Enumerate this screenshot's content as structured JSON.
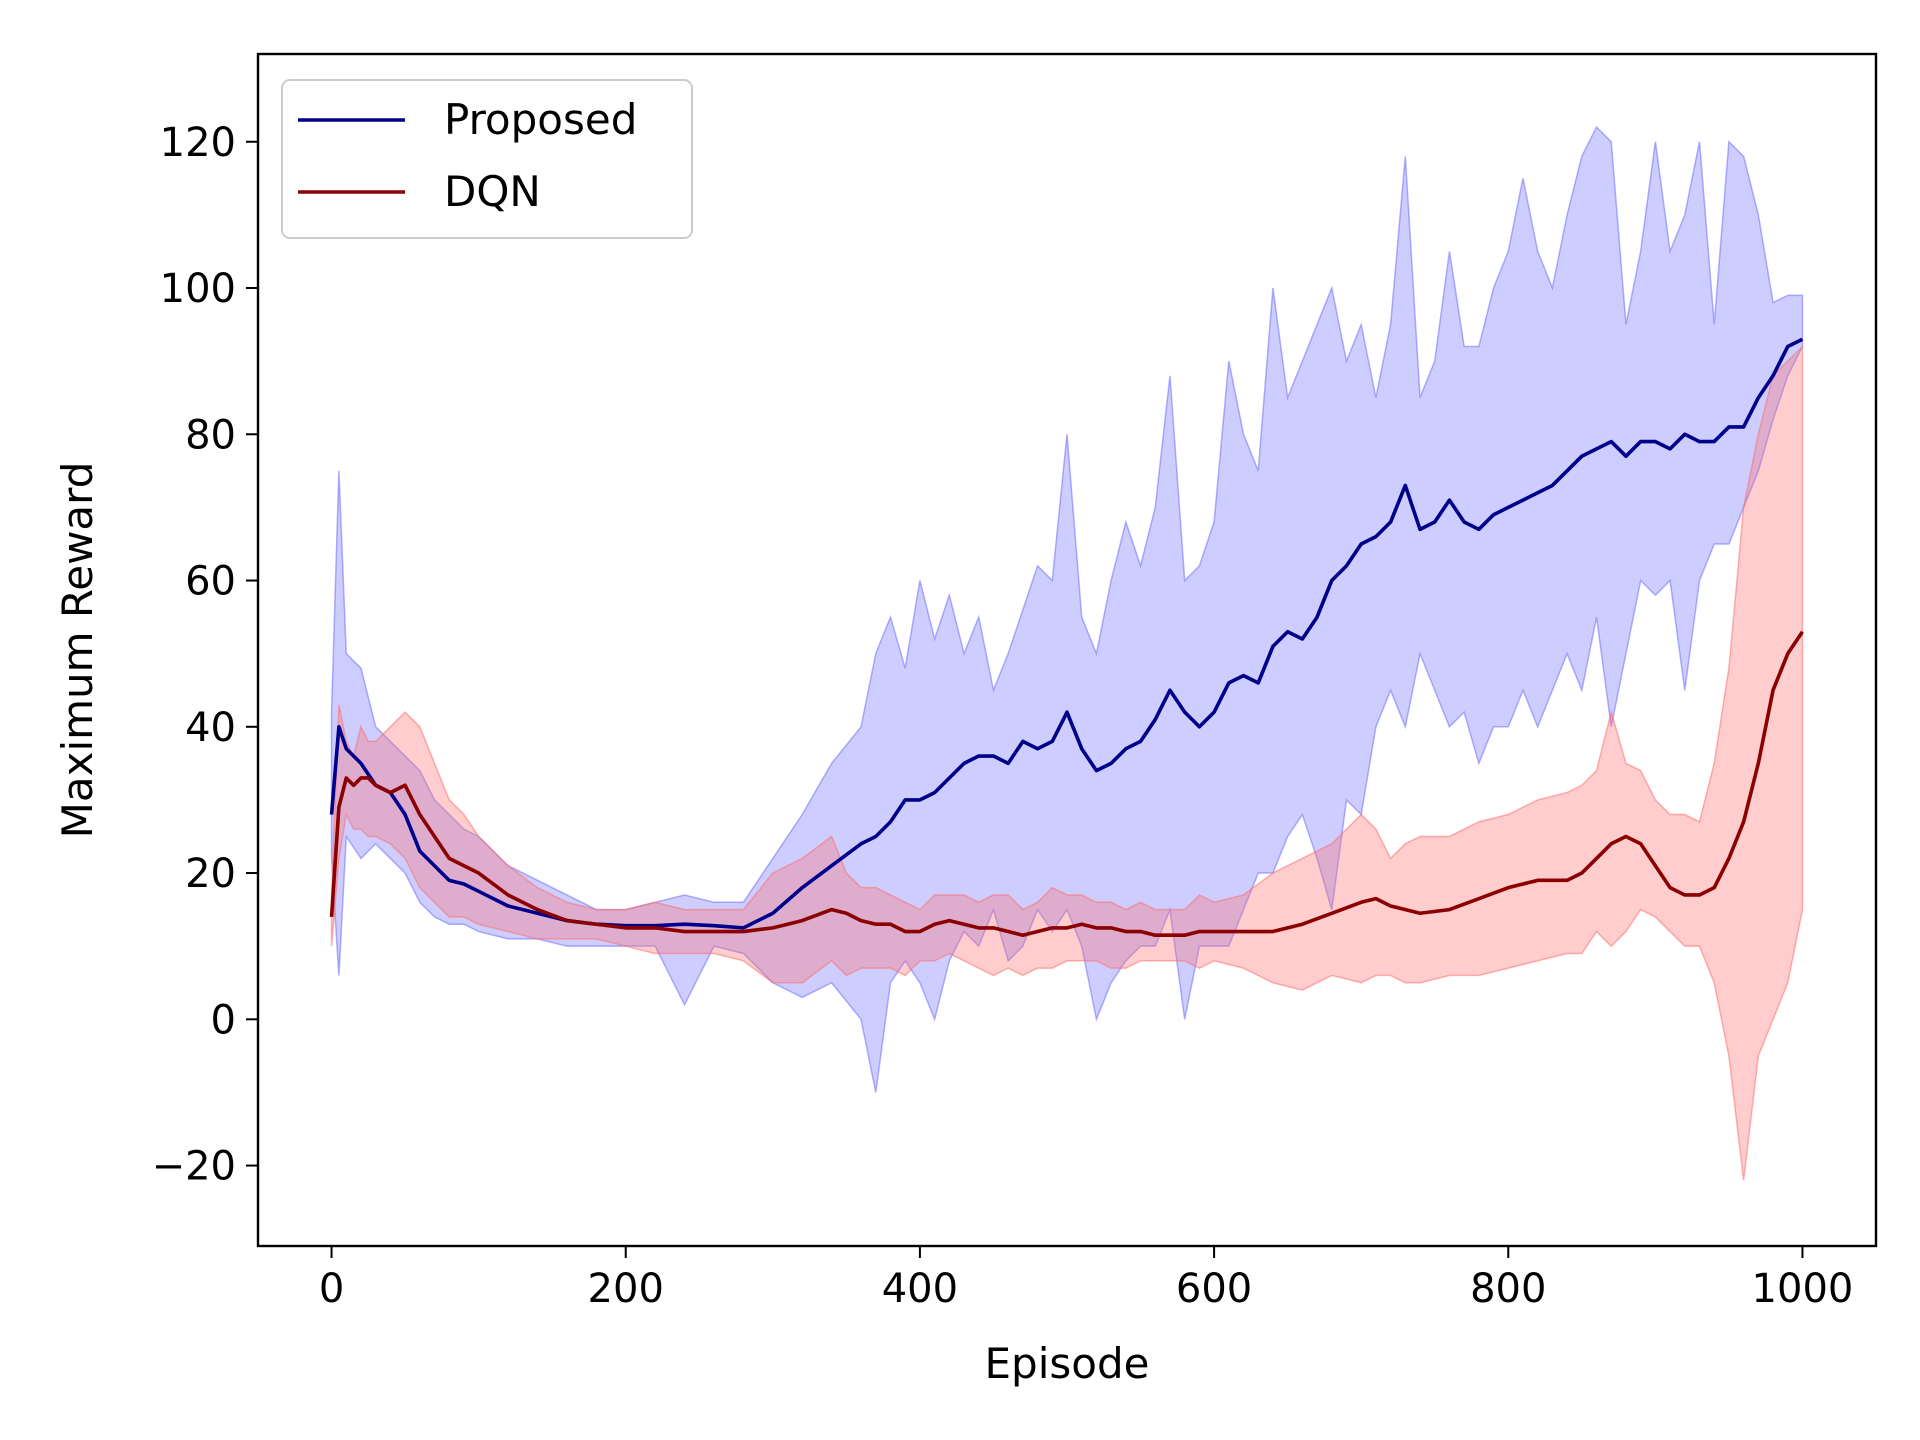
{
  "chart_data": {
    "type": "line",
    "title": "",
    "xlabel": "Episode",
    "ylabel": "Maximum Reward",
    "xlim": [
      -50,
      1050
    ],
    "ylim": [
      -31,
      132
    ],
    "xticks": [
      0,
      200,
      400,
      600,
      800,
      1000
    ],
    "yticks": [
      -20,
      0,
      20,
      40,
      60,
      80,
      100,
      120
    ],
    "grid": false,
    "legend": "top-left",
    "series": [
      {
        "name": "Proposed",
        "color": "#00008b",
        "band_color": "#6f6fff",
        "x": [
          0,
          5,
          10,
          20,
          30,
          40,
          50,
          60,
          70,
          80,
          90,
          100,
          120,
          140,
          160,
          180,
          200,
          220,
          240,
          260,
          280,
          300,
          320,
          340,
          360,
          370,
          380,
          390,
          400,
          410,
          420,
          430,
          440,
          450,
          460,
          470,
          480,
          490,
          500,
          510,
          520,
          530,
          540,
          550,
          560,
          570,
          580,
          590,
          600,
          610,
          620,
          630,
          640,
          650,
          660,
          670,
          680,
          690,
          700,
          710,
          720,
          730,
          740,
          750,
          760,
          770,
          780,
          790,
          800,
          810,
          820,
          830,
          840,
          850,
          860,
          870,
          880,
          890,
          900,
          910,
          920,
          930,
          940,
          950,
          960,
          970,
          980,
          990,
          1000
        ],
        "mean": [
          28,
          40,
          37,
          35,
          32,
          31,
          28,
          23,
          21,
          19,
          18.5,
          17.5,
          15.5,
          14.5,
          13.5,
          13,
          12.8,
          12.8,
          13,
          12.8,
          12.5,
          14.5,
          18,
          21,
          24,
          25,
          27,
          30,
          30,
          31,
          33,
          35,
          36,
          36,
          35,
          38,
          37,
          38,
          42,
          37,
          34,
          35,
          37,
          38,
          41,
          45,
          42,
          40,
          42,
          46,
          47,
          46,
          51,
          53,
          52,
          55,
          60,
          62,
          65,
          66,
          68,
          73,
          67,
          68,
          71,
          68,
          67,
          69,
          70,
          71,
          72,
          73,
          75,
          77,
          78,
          79,
          77,
          79,
          79,
          78,
          80,
          79,
          79,
          81,
          81,
          85,
          88,
          92,
          93
        ],
        "upper": [
          42,
          75,
          50,
          48,
          40,
          38,
          36,
          34,
          30,
          28,
          26,
          25,
          21,
          19,
          17,
          15,
          15,
          16,
          17,
          16,
          16,
          22,
          28,
          35,
          40,
          50,
          55,
          48,
          60,
          52,
          58,
          50,
          55,
          45,
          50,
          56,
          62,
          60,
          80,
          55,
          50,
          60,
          68,
          62,
          70,
          88,
          60,
          62,
          68,
          90,
          80,
          75,
          100,
          85,
          90,
          95,
          100,
          90,
          95,
          85,
          95,
          118,
          85,
          90,
          105,
          92,
          92,
          100,
          105,
          115,
          105,
          100,
          110,
          118,
          122,
          120,
          95,
          105,
          120,
          105,
          110,
          120,
          95,
          120,
          118,
          110,
          98,
          99,
          99
        ],
        "lower": [
          22,
          6,
          25,
          22,
          24,
          22,
          20,
          16,
          14,
          13,
          13,
          12,
          11,
          11,
          10,
          10,
          10,
          10,
          2,
          10,
          9,
          5,
          3,
          5,
          0,
          -10,
          5,
          8,
          5,
          0,
          8,
          12,
          10,
          15,
          8,
          10,
          15,
          12,
          15,
          10,
          0,
          5,
          8,
          10,
          10,
          15,
          0,
          10,
          10,
          10,
          15,
          20,
          20,
          25,
          28,
          22,
          15,
          30,
          28,
          40,
          45,
          40,
          50,
          45,
          40,
          42,
          35,
          40,
          40,
          45,
          40,
          45,
          50,
          45,
          55,
          40,
          50,
          60,
          58,
          60,
          45,
          60,
          65,
          65,
          70,
          75,
          82,
          88,
          92
        ]
      },
      {
        "name": "DQN",
        "color": "#8b0000",
        "band_color": "#ff6f6f",
        "x": [
          0,
          5,
          10,
          15,
          20,
          25,
          30,
          40,
          50,
          60,
          70,
          80,
          90,
          100,
          120,
          140,
          160,
          180,
          200,
          220,
          240,
          260,
          280,
          300,
          320,
          340,
          350,
          360,
          370,
          380,
          390,
          400,
          410,
          420,
          430,
          440,
          450,
          460,
          470,
          480,
          490,
          500,
          510,
          520,
          530,
          540,
          550,
          560,
          570,
          580,
          590,
          600,
          620,
          640,
          660,
          680,
          700,
          710,
          720,
          730,
          740,
          760,
          780,
          800,
          820,
          840,
          850,
          860,
          870,
          880,
          890,
          900,
          910,
          920,
          930,
          940,
          950,
          960,
          970,
          980,
          990,
          1000
        ],
        "mean": [
          14,
          29,
          33,
          32,
          33,
          33,
          32,
          31,
          32,
          28,
          25,
          22,
          21,
          20,
          17,
          15,
          13.5,
          13,
          12.5,
          12.5,
          12,
          12,
          12,
          12.5,
          13.5,
          15,
          14.5,
          13.5,
          13,
          13,
          12,
          12,
          13,
          13.5,
          13,
          12.5,
          12.5,
          12,
          11.5,
          12,
          12.5,
          12.5,
          13,
          12.5,
          12.5,
          12,
          12,
          11.5,
          11.5,
          11.5,
          12,
          12,
          12,
          12,
          13,
          14.5,
          16,
          16.5,
          15.5,
          15,
          14.5,
          15,
          16.5,
          18,
          19,
          19,
          20,
          22,
          24,
          25,
          24,
          21,
          18,
          17,
          17,
          18,
          22,
          27,
          35,
          45,
          50,
          53
        ],
        "upper": [
          17,
          43,
          38,
          36,
          40,
          38,
          38,
          40,
          42,
          40,
          35,
          30,
          28,
          25,
          21,
          18,
          16,
          15,
          15,
          16,
          15,
          15,
          15,
          20,
          22,
          25,
          20,
          18,
          18,
          17,
          16,
          15,
          17,
          17,
          17,
          16,
          17,
          17,
          15,
          16,
          18,
          17,
          17,
          16,
          16,
          15,
          16,
          15,
          15,
          15,
          17,
          16,
          17,
          20,
          22,
          24,
          28,
          26,
          22,
          24,
          25,
          25,
          27,
          28,
          30,
          31,
          32,
          34,
          42,
          35,
          34,
          30,
          28,
          28,
          27,
          35,
          48,
          70,
          80,
          88,
          90,
          92
        ],
        "lower": [
          10,
          22,
          28,
          26,
          26,
          25,
          25,
          24,
          22,
          18,
          16,
          14,
          14,
          13,
          12,
          11,
          11,
          11,
          10,
          9,
          9,
          9,
          8,
          5,
          5,
          8,
          6,
          7,
          7,
          7,
          6,
          8,
          8,
          9,
          8,
          7,
          6,
          7,
          6,
          7,
          7,
          8,
          8,
          8,
          7,
          7,
          8,
          8,
          8,
          8,
          7,
          8,
          7,
          5,
          4,
          6,
          5,
          6,
          6,
          5,
          5,
          6,
          6,
          7,
          8,
          9,
          9,
          12,
          10,
          12,
          15,
          14,
          12,
          10,
          10,
          5,
          -5,
          -22,
          -5,
          0,
          5,
          15
        ]
      }
    ]
  }
}
